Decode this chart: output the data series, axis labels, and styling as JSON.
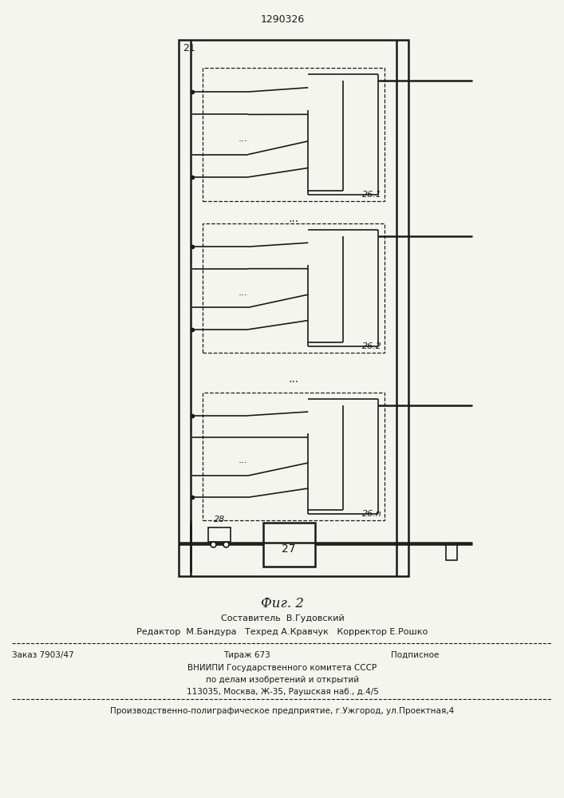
{
  "bg_color": "#f5f5f0",
  "lc": "#1a1a1a",
  "patent_number": "1290326",
  "fig_label": "Фиг. 2",
  "label_21": "21",
  "label_27": "27",
  "label_28": "28",
  "labels_26": [
    "26.1",
    "26.2",
    "26.n"
  ],
  "text_sostavitel": "Составитель  В.Гудовский",
  "text_redaktor": "Редактор  М.Бандура   Техред А.Кравчук   Корректор Е.Рошко",
  "text_zakaz": "Заказ 7903/47",
  "text_tirazh": "Тираж 673",
  "text_podpisnoe": "Подписное",
  "text_vniip1": "ВНИИПИ Государственного комитета СССР",
  "text_vniip2": "по делам изобретений и открытий",
  "text_addr": "113035, Москва, Ж-35, Раушская наб., д.4/5",
  "text_prod": "Производственно-полиграфическое предприятие, г.Ужгород, ул.Проектная,4"
}
